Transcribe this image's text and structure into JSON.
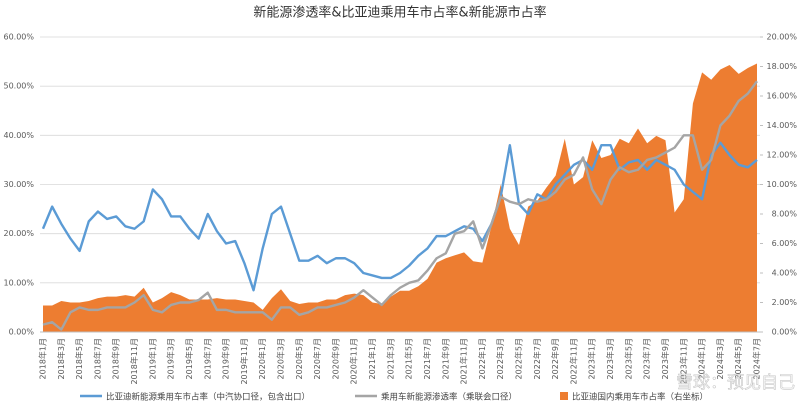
{
  "chart_data": {
    "type": "line",
    "title": "新能源渗透率&比亚迪乘用车市占率&新能源市占率",
    "watermark": "雪球：预见自己",
    "categories": [
      "2018年1月",
      null,
      "2018年3月",
      null,
      "2018年5月",
      null,
      "2018年7月",
      null,
      "2018年9月",
      null,
      "2018年11月",
      null,
      "2019年1月",
      null,
      "2019年3月",
      null,
      "2019年5月",
      null,
      "2019年7月",
      null,
      "2019年9月",
      null,
      "2019年11月",
      null,
      "2020年1月",
      null,
      "2020年3月",
      null,
      "2020年5月",
      null,
      "2020年7月",
      null,
      "2020年9月",
      null,
      "2020年11月",
      null,
      "2021年1月",
      null,
      "2021年3月",
      null,
      "2021年5月",
      null,
      "2021年7月",
      null,
      "2021年9月",
      null,
      "2021年11月",
      null,
      "2022年1月",
      null,
      "2022年3月",
      null,
      "2022年5月",
      null,
      "2022年7月",
      null,
      "2022年9月",
      null,
      "2022年11月",
      null,
      "2023年1月",
      null,
      "2023年3月",
      null,
      "2023年5月",
      null,
      "2023年7月",
      null,
      "2023年9月",
      null,
      "2023年11月",
      null,
      "2024年1月",
      null,
      "2024年3月",
      null,
      "2024年5月",
      null,
      "2024年7月"
    ],
    "series": [
      {
        "name": "比亚迪国内乘用车市占率（右坐标）",
        "color": "#ed7d31",
        "axis": "y2",
        "mark": "area",
        "values": [
          1.8,
          1.8,
          2.1,
          2.0,
          2.0,
          2.1,
          2.3,
          2.4,
          2.4,
          2.5,
          2.4,
          3.0,
          2.0,
          2.3,
          2.7,
          2.5,
          2.2,
          2.2,
          2.2,
          2.3,
          2.2,
          2.2,
          2.1,
          2.0,
          1.5,
          2.3,
          2.9,
          2.1,
          1.9,
          2.0,
          2.0,
          2.2,
          2.2,
          2.5,
          2.6,
          2.5,
          2.0,
          1.9,
          2.4,
          2.8,
          2.8,
          3.1,
          3.6,
          4.7,
          5.0,
          5.2,
          5.4,
          4.8,
          4.7,
          7.2,
          10.0,
          7.0,
          5.9,
          8.5,
          8.9,
          9.8,
          10.6,
          13.1,
          10.0,
          10.5,
          13.0,
          11.8,
          12.0,
          13.1,
          12.8,
          13.8,
          12.8,
          13.3,
          13.0,
          8.1,
          9.0,
          15.5,
          17.6,
          17.1,
          17.8,
          18.1,
          17.5,
          17.9,
          18.2
        ]
      },
      {
        "name": "比亚迪新能源乘用车市占率（中汽协口径，包含出口）",
        "color": "#5b9bd5",
        "mark": "line",
        "values": [
          21,
          25.5,
          22,
          19,
          16.5,
          22.5,
          24.5,
          23,
          23.5,
          21.5,
          21,
          22.5,
          29,
          27,
          23.5,
          23.5,
          21,
          19,
          24,
          20.5,
          18,
          18.5,
          14,
          8.5,
          17,
          24,
          25.5,
          20,
          14.5,
          14.5,
          15.5,
          14,
          15,
          15,
          14,
          12,
          11.5,
          11,
          11,
          12,
          13.5,
          15.5,
          17,
          19.5,
          19.5,
          20.5,
          21.5,
          21,
          18.5,
          22,
          27.5,
          38,
          26,
          24,
          28,
          27,
          30,
          32,
          34,
          35,
          33,
          38,
          38,
          33,
          34.5,
          35,
          33,
          35,
          34,
          33,
          30,
          28.5,
          27,
          36,
          38.5,
          36,
          34,
          33.5,
          35
        ]
      },
      {
        "name": "乘用车新能源渗透率（乘联会口径）",
        "color": "#a5a5a5",
        "mark": "line",
        "values": [
          1.5,
          2,
          0.5,
          4,
          5,
          4.5,
          4.5,
          5,
          5,
          5,
          6,
          7.5,
          4.5,
          4,
          5.5,
          6,
          6,
          6.5,
          8,
          4.5,
          4.5,
          4,
          4,
          4,
          4,
          2.5,
          5,
          5,
          3.5,
          4,
          5,
          5,
          5.5,
          6,
          7,
          8.5,
          7,
          5.5,
          7.5,
          9,
          10,
          10.5,
          12.5,
          15,
          16,
          20,
          20.5,
          22.5,
          17,
          22,
          27.5,
          26.5,
          26,
          27,
          26.5,
          27,
          28.5,
          31,
          32,
          35.5,
          29,
          26,
          31,
          33.5,
          32.5,
          33,
          35,
          35.5,
          36.5,
          37.5,
          40,
          40,
          33,
          35,
          42,
          44,
          47,
          48.5,
          51
        ]
      }
    ],
    "ylim": [
      0,
      60
    ],
    "yticks": [
      {
        "value": 0,
        "label": "0.00%"
      },
      {
        "value": 10,
        "label": "10.00%"
      },
      {
        "value": 20,
        "label": "20.00%"
      },
      {
        "value": 30,
        "label": "30.00%"
      },
      {
        "value": 40,
        "label": "40.00%"
      },
      {
        "value": 50,
        "label": "50.00%"
      },
      {
        "value": 60,
        "label": "60.00%"
      }
    ],
    "y2lim": [
      0,
      20
    ],
    "y2ticks": [
      {
        "value": 0,
        "label": "0.00%"
      },
      {
        "value": 2,
        "label": "2.00%"
      },
      {
        "value": 4,
        "label": "4.00%"
      },
      {
        "value": 6,
        "label": "6.00%"
      },
      {
        "value": 8,
        "label": "8.00%"
      },
      {
        "value": 10,
        "label": "10.00%"
      },
      {
        "value": 12,
        "label": "12.00%"
      },
      {
        "value": 14,
        "label": "14.00%"
      },
      {
        "value": 16,
        "label": "16.00%"
      },
      {
        "value": 18,
        "label": "18.00%"
      },
      {
        "value": 20,
        "label": "20.00%"
      }
    ],
    "grid": true,
    "legend": "bottom"
  }
}
